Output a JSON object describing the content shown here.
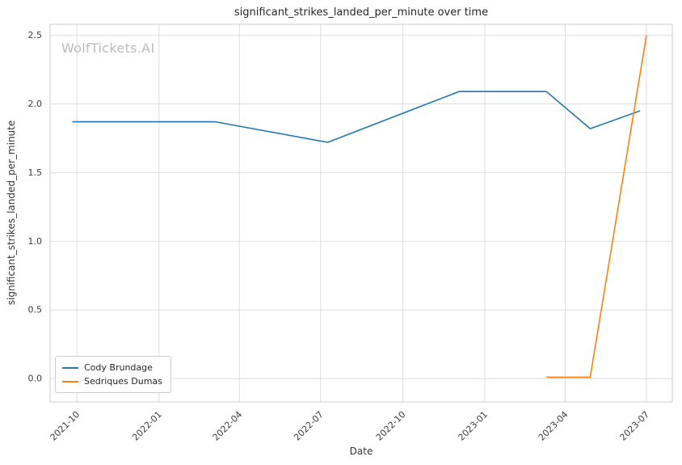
{
  "chart_data": {
    "type": "line",
    "title": "significant_strikes_landed_per_minute over time",
    "xlabel": "Date",
    "ylabel": "significant_strikes_landed_per_minute",
    "watermark": "WolfTickets.AI",
    "grid": true,
    "legend_position": "lower left",
    "x_ticks": [
      "2021-10",
      "2022-01",
      "2022-04",
      "2022-07",
      "2022-10",
      "2023-01",
      "2023-04",
      "2023-07"
    ],
    "y_ticks": [
      0.0,
      0.5,
      1.0,
      1.5,
      2.0,
      2.5
    ],
    "x_range": [
      "2021-09-01",
      "2023-07-30"
    ],
    "ylim": [
      -0.17,
      2.58
    ],
    "series": [
      {
        "name": "Cody Brundage",
        "color": "#1f77b4",
        "points": [
          [
            "2021-09-26",
            1.87
          ],
          [
            "2022-03-05",
            1.87
          ],
          [
            "2022-07-09",
            1.72
          ],
          [
            "2022-12-03",
            2.09
          ],
          [
            "2023-03-11",
            2.09
          ],
          [
            "2023-04-29",
            1.82
          ],
          [
            "2023-06-24",
            1.95
          ]
        ]
      },
      {
        "name": "Sedriques Dumas",
        "color": "#ff7f0e",
        "points": [
          [
            "2023-03-11",
            0.01
          ],
          [
            "2023-04-29",
            0.01
          ],
          [
            "2023-07-01",
            2.5
          ]
        ]
      }
    ]
  }
}
